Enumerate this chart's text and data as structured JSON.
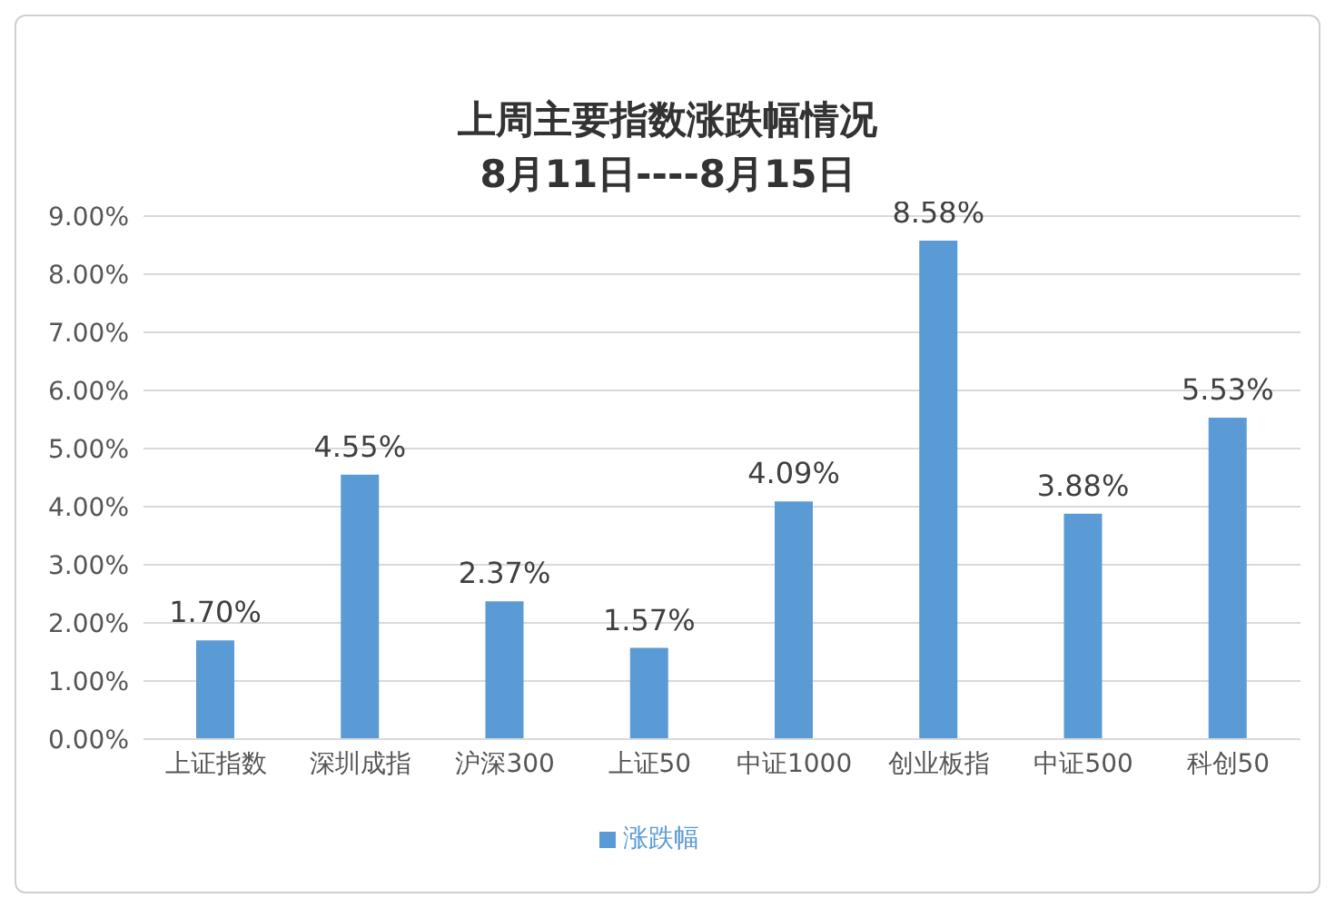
{
  "chart_data": {
    "type": "bar",
    "title": "上周主要指数涨跌幅情况",
    "subtitle": "8月11日----8月15日",
    "categories": [
      "上证指数",
      "深圳成指",
      "沪深300",
      "上证50",
      "中证1000",
      "创业板指",
      "中证500",
      "科创50"
    ],
    "series": [
      {
        "name": "涨跌幅",
        "color": "#5b9bd5",
        "values": [
          1.7,
          4.55,
          2.37,
          1.57,
          4.09,
          8.58,
          3.88,
          5.53
        ],
        "value_labels": [
          "1.70%",
          "4.55%",
          "2.37%",
          "1.57%",
          "4.09%",
          "8.58%",
          "3.88%",
          "5.53%"
        ]
      }
    ],
    "ylim": [
      0,
      9
    ],
    "yticks": [
      {
        "value": 0,
        "label": "0.00%"
      },
      {
        "value": 1,
        "label": "1.00%"
      },
      {
        "value": 2,
        "label": "2.00%"
      },
      {
        "value": 3,
        "label": "3.00%"
      },
      {
        "value": 4,
        "label": "4.00%"
      },
      {
        "value": 5,
        "label": "5.00%"
      },
      {
        "value": 6,
        "label": "6.00%"
      },
      {
        "value": 7,
        "label": "7.00%"
      },
      {
        "value": 8,
        "label": "8.00%"
      },
      {
        "value": 9,
        "label": "9.00%"
      }
    ],
    "grid": "y",
    "legend": "bottom"
  }
}
